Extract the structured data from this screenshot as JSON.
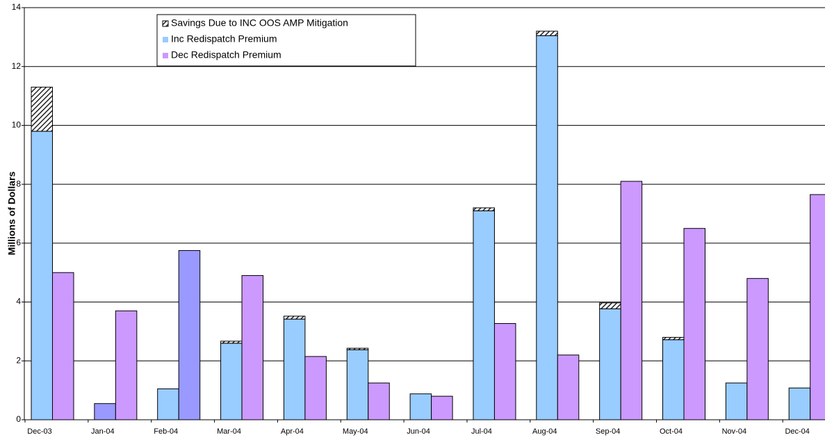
{
  "chart_data": {
    "type": "bar",
    "y_label": "Millions of Dollars",
    "categories": [
      "Dec-03",
      "Jan-04",
      "Feb-04",
      "Mar-04",
      "Apr-04",
      "May-04",
      "Jun-04",
      "Jul-04",
      "Aug-04",
      "Sep-04",
      "Oct-04",
      "Nov-04",
      "Dec-04"
    ],
    "series": [
      {
        "name": "Savings Due to INC OOS AMP Mitigation",
        "color": "#333333",
        "pattern": "hatch",
        "values": [
          1.5,
          0,
          0,
          0.07,
          0.1,
          0.05,
          0,
          0.1,
          0.15,
          0.2,
          0.08,
          0,
          0
        ]
      },
      {
        "name": "Inc Redispatch Premium",
        "color": "#99ccff",
        "colors": [
          "#99ccff",
          "#9999ff",
          "#99ccff",
          "#99ccff",
          "#99ccff",
          "#99ccff",
          "#99ccff",
          "#99ccff",
          "#99ccff",
          "#99ccff",
          "#99ccff",
          "#99ccff",
          "#99ccff"
        ],
        "values": [
          9.8,
          0.55,
          1.05,
          2.6,
          3.42,
          2.38,
          0.88,
          7.1,
          13.05,
          3.77,
          2.72,
          1.25,
          1.08
        ]
      },
      {
        "name": "Dec Redispatch Premium",
        "color": "#cc99ff",
        "colors": [
          "#cc99ff",
          "#cc99ff",
          "#9999ff",
          "#cc99ff",
          "#cc99ff",
          "#cc99ff",
          "#cc99ff",
          "#cc99ff",
          "#cc99ff",
          "#cc99ff",
          "#cc99ff",
          "#cc99ff",
          "#cc99ff"
        ],
        "values": [
          5.0,
          3.7,
          5.75,
          4.9,
          2.15,
          1.25,
          0.8,
          3.27,
          2.2,
          8.1,
          6.5,
          4.8,
          7.65
        ]
      }
    ],
    "ylim": [
      0,
      14
    ],
    "yticks": [
      0,
      2,
      4,
      6,
      8,
      10,
      12,
      14
    ],
    "grid": true,
    "legend": "top-left"
  }
}
